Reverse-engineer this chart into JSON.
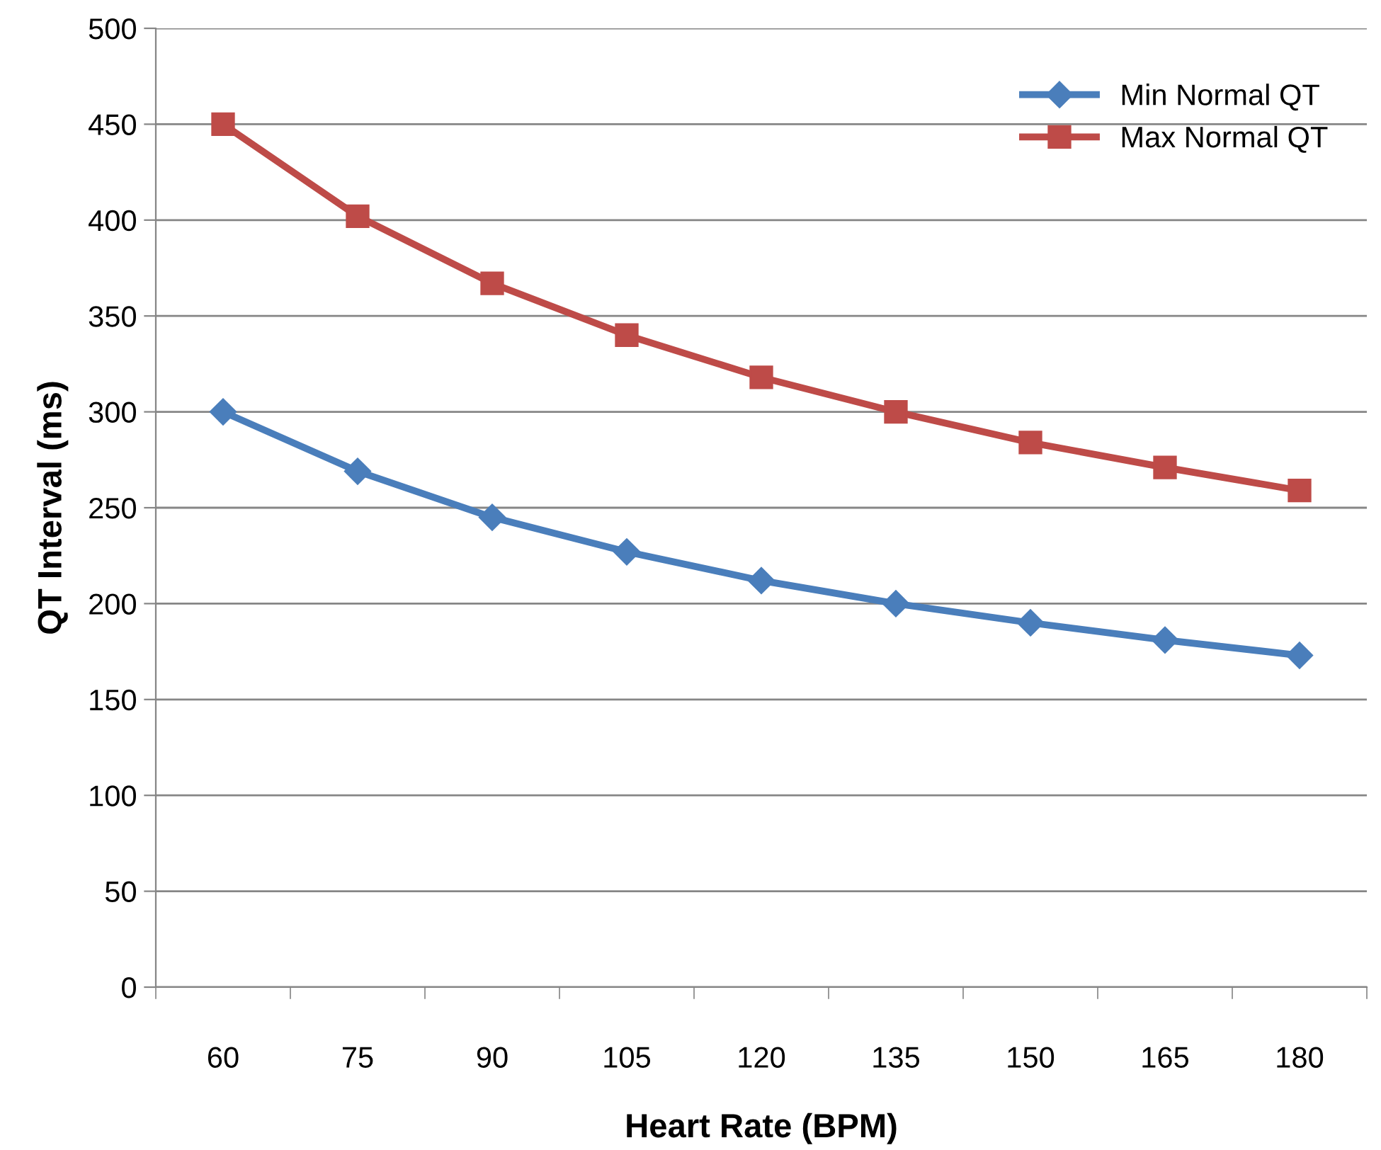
{
  "chart_data": {
    "type": "line",
    "xlabel": "Heart Rate (BPM)",
    "ylabel": "QT Interval (ms)",
    "categories": [
      "60",
      "75",
      "90",
      "105",
      "120",
      "135",
      "150",
      "165",
      "180"
    ],
    "series": [
      {
        "name": "Min Normal QT",
        "color": "#4a7ebb",
        "marker": "diamond",
        "values": [
          300,
          269,
          245,
          227,
          212,
          200,
          190,
          181,
          173
        ]
      },
      {
        "name": "Max Normal QT",
        "color": "#be4b48",
        "marker": "square",
        "values": [
          450,
          402,
          367,
          340,
          318,
          300,
          284,
          271,
          259
        ]
      }
    ],
    "ylim": [
      0,
      500
    ],
    "yticks": [
      0,
      50,
      100,
      150,
      200,
      250,
      300,
      350,
      400,
      450,
      500
    ],
    "grid": "y",
    "legend": "top right",
    "line_style": "solid"
  }
}
